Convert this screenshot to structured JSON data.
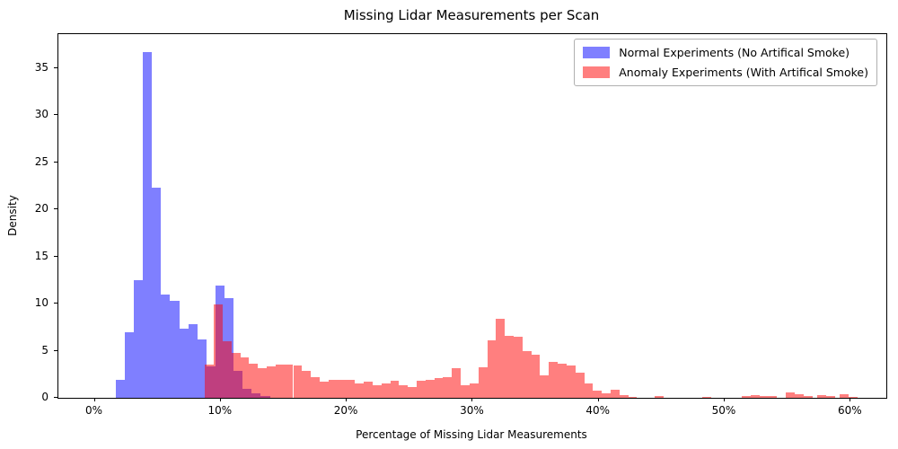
{
  "chart_data": {
    "type": "histogram",
    "title": "Missing Lidar Measurements per Scan",
    "xlabel": "Percentage of Missing Lidar Measurements",
    "ylabel": "Density",
    "grid": false,
    "legend_position": "upper right",
    "xlim": [
      -2.89,
      62.83
    ],
    "ylim": [
      0,
      38.62
    ],
    "x_ticks": {
      "values": [
        0,
        10,
        20,
        30,
        40,
        50,
        60
      ],
      "labels": [
        "0%",
        "10%",
        "20%",
        "30%",
        "40%",
        "50%",
        "60%"
      ]
    },
    "y_ticks": {
      "values": [
        0,
        5,
        10,
        15,
        20,
        25,
        30,
        35
      ],
      "labels": [
        "0",
        "5",
        "10",
        "15",
        "20",
        "25",
        "30",
        "35"
      ]
    },
    "bin_width_pct": 0.7,
    "series": [
      {
        "name": "Normal Experiments (No Artifical Smoke)",
        "color": "rgba(0,0,255,0.5)",
        "bins": [
          [
            1.66,
            2.38,
            1.9
          ],
          [
            2.38,
            3.1,
            7.0
          ],
          [
            3.1,
            3.82,
            12.5
          ],
          [
            3.82,
            4.54,
            36.7
          ],
          [
            4.54,
            5.26,
            22.3
          ],
          [
            5.26,
            5.98,
            11.0
          ],
          [
            5.98,
            6.7,
            10.3
          ],
          [
            6.7,
            7.42,
            7.3
          ],
          [
            7.42,
            8.14,
            7.8
          ],
          [
            8.14,
            8.86,
            6.2
          ],
          [
            8.86,
            9.58,
            3.3
          ],
          [
            9.58,
            10.3,
            11.9
          ],
          [
            10.3,
            11.02,
            10.6
          ],
          [
            11.02,
            11.74,
            2.9
          ],
          [
            11.74,
            12.46,
            1.0
          ],
          [
            12.46,
            13.18,
            0.45
          ],
          [
            13.18,
            13.9,
            0.2
          ]
        ]
      },
      {
        "name": "Anomaly Experiments (With Artifical Smoke)",
        "color": "rgba(255,0,0,0.5)",
        "bins": [
          [
            8.75,
            9.45,
            3.5
          ],
          [
            9.45,
            10.15,
            9.9
          ],
          [
            10.15,
            10.85,
            6.0
          ],
          [
            10.85,
            11.55,
            4.8
          ],
          [
            11.55,
            12.25,
            4.3
          ],
          [
            12.25,
            12.95,
            3.6
          ],
          [
            12.95,
            13.65,
            3.1
          ],
          [
            13.65,
            14.35,
            3.3
          ],
          [
            14.35,
            15.05,
            3.5
          ],
          [
            15.05,
            15.75,
            3.5
          ],
          [
            15.75,
            16.45,
            3.4
          ],
          [
            16.45,
            17.15,
            2.9
          ],
          [
            17.15,
            17.85,
            2.2
          ],
          [
            17.85,
            18.55,
            1.7
          ],
          [
            18.55,
            19.25,
            1.9
          ],
          [
            19.25,
            19.95,
            1.9
          ],
          [
            19.95,
            20.65,
            1.9
          ],
          [
            20.65,
            21.35,
            1.5
          ],
          [
            21.35,
            22.05,
            1.7
          ],
          [
            22.05,
            22.75,
            1.3
          ],
          [
            22.75,
            23.45,
            1.55
          ],
          [
            23.45,
            24.15,
            1.8
          ],
          [
            24.15,
            24.85,
            1.3
          ],
          [
            24.85,
            25.55,
            1.1
          ],
          [
            25.55,
            26.25,
            1.8
          ],
          [
            26.25,
            26.95,
            1.9
          ],
          [
            26.95,
            27.65,
            2.1
          ],
          [
            27.65,
            28.35,
            2.2
          ],
          [
            28.35,
            29.05,
            3.1
          ],
          [
            29.05,
            29.75,
            1.3
          ],
          [
            29.75,
            30.45,
            1.5
          ],
          [
            30.45,
            31.15,
            3.2
          ],
          [
            31.15,
            31.85,
            6.1
          ],
          [
            31.85,
            32.55,
            8.4
          ],
          [
            32.55,
            33.25,
            6.6
          ],
          [
            33.25,
            33.95,
            6.5
          ],
          [
            33.95,
            34.65,
            5.0
          ],
          [
            34.65,
            35.35,
            4.6
          ],
          [
            35.35,
            36.05,
            2.4
          ],
          [
            36.05,
            36.75,
            3.8
          ],
          [
            36.75,
            37.45,
            3.6
          ],
          [
            37.45,
            38.15,
            3.4
          ],
          [
            38.15,
            38.85,
            2.7
          ],
          [
            38.85,
            39.55,
            1.5
          ],
          [
            39.55,
            40.25,
            0.8
          ],
          [
            40.25,
            40.95,
            0.5
          ],
          [
            40.95,
            41.65,
            0.9
          ],
          [
            41.65,
            42.35,
            0.3
          ],
          [
            42.35,
            43.05,
            0.1
          ],
          [
            44.45,
            45.15,
            0.15
          ],
          [
            48.25,
            48.95,
            0.1
          ],
          [
            51.35,
            52.05,
            0.2
          ],
          [
            52.05,
            52.75,
            0.25
          ],
          [
            52.75,
            53.45,
            0.2
          ],
          [
            53.45,
            54.15,
            0.15
          ],
          [
            54.85,
            55.55,
            0.6
          ],
          [
            55.55,
            56.25,
            0.35
          ],
          [
            56.25,
            56.95,
            0.15
          ],
          [
            57.35,
            58.05,
            0.3
          ],
          [
            58.05,
            58.75,
            0.2
          ],
          [
            59.15,
            59.85,
            0.35
          ],
          [
            59.85,
            60.55,
            0.1
          ]
        ]
      }
    ]
  }
}
